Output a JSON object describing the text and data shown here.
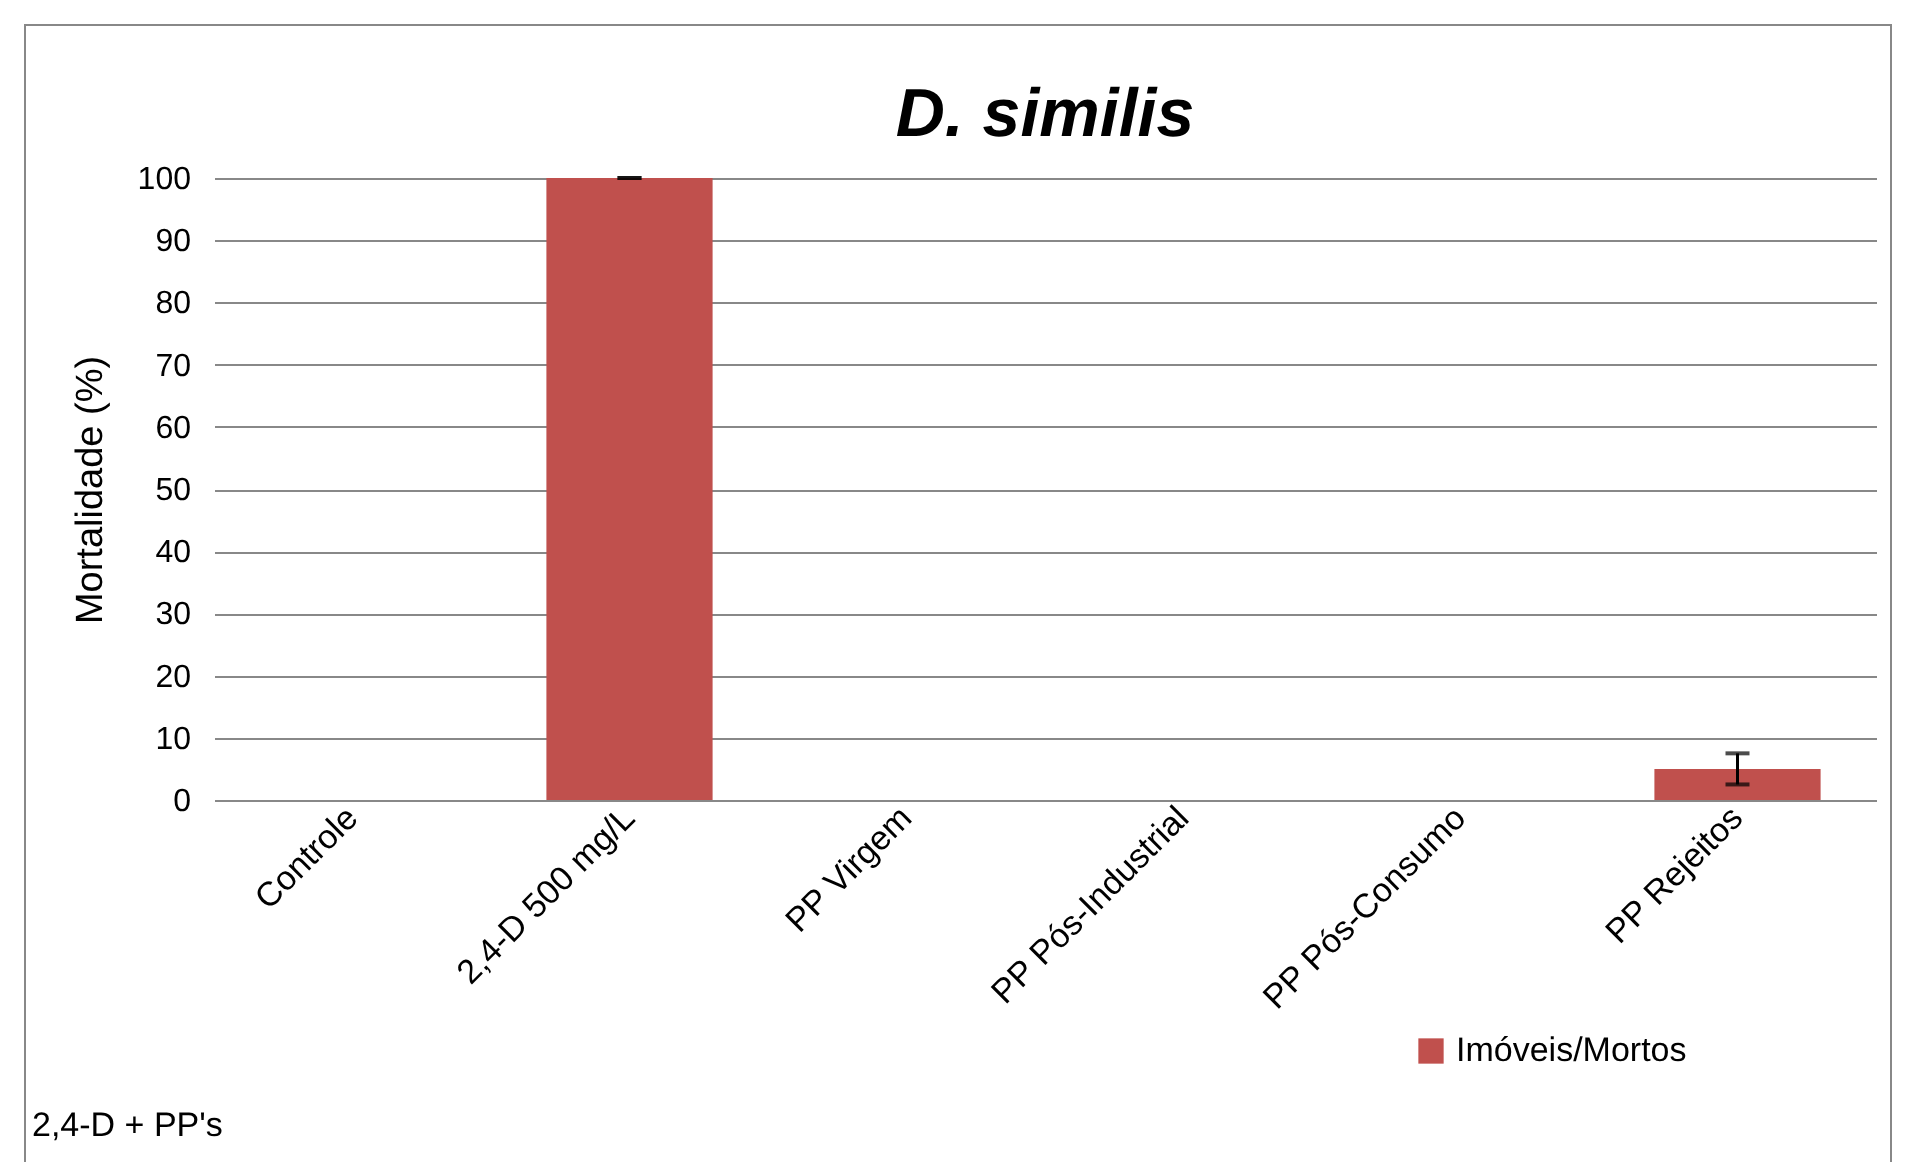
{
  "chart_data": {
    "type": "bar",
    "title": "D. similis",
    "ylabel": "Mortalidade (%)",
    "categories": [
      "Controle",
      "2,4-D 500 mg/L",
      "PP Virgem",
      "PP Pós-Industrial",
      "PP Pós-Consumo",
      "PP Rejeitos"
    ],
    "series": [
      {
        "name": "Imóveis/Mortos",
        "color": "#c0504d",
        "values": [
          0,
          100,
          0,
          0,
          0,
          5
        ],
        "errors": [
          null,
          0,
          null,
          null,
          null,
          2.5
        ]
      }
    ],
    "ylim": [
      0,
      100
    ],
    "yticks": [
      0,
      10,
      20,
      30,
      40,
      50,
      60,
      70,
      80,
      90,
      100
    ],
    "grid": "y",
    "legend": "bottom right",
    "annotations": [
      "2,4-D + PP's"
    ]
  }
}
